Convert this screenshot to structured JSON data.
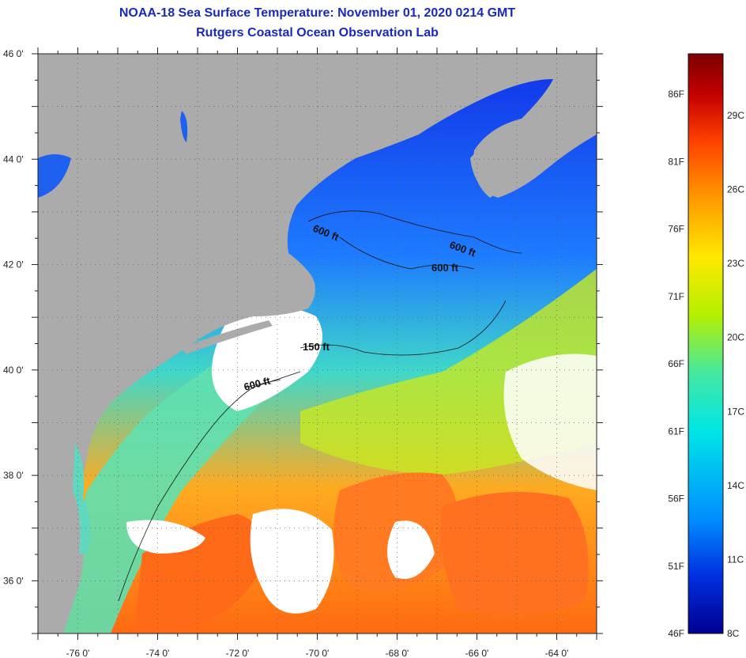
{
  "header": {
    "title": "NOAA-18 Sea Surface Temperature:  November 01, 2020 0214 GMT",
    "subtitle": "Rutgers Coastal Ocean Observation Lab"
  },
  "map": {
    "lon_range": [
      -77,
      -63
    ],
    "lat_range": [
      35,
      46
    ],
    "lat_ticks": [
      "46 0'",
      "44 0'",
      "42 0'",
      "40 0'",
      "38 0'",
      "36 0'"
    ],
    "lon_ticks": [
      "-76 0'",
      "-74 0'",
      "-72 0'",
      "-70 0'",
      "-68 0'",
      "-66 0'",
      "-64 0'"
    ],
    "depth_labels": [
      "600 ft",
      "600 ft",
      "600 ft",
      "150 ft",
      "600 ft"
    ],
    "colors": {
      "land": "#ababab",
      "cloud": "#ffffff"
    }
  },
  "colorbar": {
    "fahrenheit": [
      "86F",
      "81F",
      "76F",
      "71F",
      "66F",
      "61F",
      "56F",
      "51F",
      "46F"
    ],
    "celsius": [
      "29C",
      "26C",
      "23C",
      "20C",
      "17C",
      "14C",
      "11C",
      "8C"
    ],
    "colors": [
      "#7a0000",
      "#c40000",
      "#ff4000",
      "#ff9a00",
      "#ffe800",
      "#b4f000",
      "#46e8a0",
      "#00e6e6",
      "#0090ff",
      "#0030e0",
      "#000090"
    ]
  }
}
